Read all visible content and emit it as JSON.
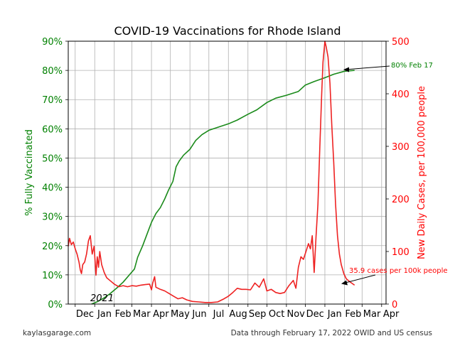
{
  "chart_data": {
    "type": "line",
    "title": "COVID-19 Vaccinations for Rhode Island",
    "x_axis": {
      "tick_labels": [
        "Dec",
        "Jan",
        "Feb",
        "Mar",
        "Apr",
        "May",
        "Jun",
        "Jul",
        "Aug",
        "Sep",
        "Oct",
        "Nov",
        "Dec",
        "Jan",
        "Feb",
        "Mar",
        "Apr"
      ],
      "tick_months": [
        "2020-12",
        "2021-01",
        "2021-02",
        "2021-03",
        "2021-04",
        "2021-05",
        "2021-06",
        "2021-07",
        "2021-08",
        "2021-09",
        "2021-10",
        "2021-11",
        "2021-12",
        "2022-01",
        "2022-02",
        "2022-03",
        "2022-04"
      ],
      "range": [
        "2020-11-20",
        "2022-04-08"
      ],
      "year_label": "2021"
    },
    "y_left": {
      "label": "% Fully Vaccinated",
      "range": [
        0,
        90
      ],
      "ticks": [
        "0%",
        "10%",
        "20%",
        "30%",
        "40%",
        "50%",
        "60%",
        "70%",
        "80%",
        "90%"
      ],
      "color": "#008000"
    },
    "y_right": {
      "label": "New Daily Cases, per 100,000 people",
      "range": [
        0,
        500
      ],
      "ticks": [
        "0",
        "100",
        "200",
        "300",
        "400",
        "500"
      ],
      "color": "#ff0000"
    },
    "grid": true,
    "series": [
      {
        "axis": "left",
        "color": "#1a8a1a",
        "points": [
          [
            "2020-12-27",
            0
          ],
          [
            "2021-01-05",
            0.8
          ],
          [
            "2021-01-15",
            2
          ],
          [
            "2021-01-25",
            3.5
          ],
          [
            "2021-02-05",
            5.5
          ],
          [
            "2021-02-15",
            7.5
          ],
          [
            "2021-02-25",
            10
          ],
          [
            "2021-03-05",
            12
          ],
          [
            "2021-03-10",
            16
          ],
          [
            "2021-03-18",
            20
          ],
          [
            "2021-03-25",
            24
          ],
          [
            "2021-04-01",
            28
          ],
          [
            "2021-04-08",
            31
          ],
          [
            "2021-04-15",
            33
          ],
          [
            "2021-04-22",
            36
          ],
          [
            "2021-04-28",
            39
          ],
          [
            "2021-05-05",
            42
          ],
          [
            "2021-05-10",
            47
          ],
          [
            "2021-05-15",
            49
          ],
          [
            "2021-05-22",
            51
          ],
          [
            "2021-06-01",
            53
          ],
          [
            "2021-06-10",
            56
          ],
          [
            "2021-06-20",
            58
          ],
          [
            "2021-07-01",
            59.5
          ],
          [
            "2021-07-15",
            60.5
          ],
          [
            "2021-08-01",
            61.7
          ],
          [
            "2021-08-15",
            63
          ],
          [
            "2021-09-01",
            65
          ],
          [
            "2021-09-15",
            66.5
          ],
          [
            "2021-10-01",
            69
          ],
          [
            "2021-10-15",
            70.5
          ],
          [
            "2021-11-01",
            71.5
          ],
          [
            "2021-11-20",
            72.8
          ],
          [
            "2021-12-01",
            75
          ],
          [
            "2021-12-15",
            76.2
          ],
          [
            "2022-01-01",
            77.5
          ],
          [
            "2022-01-15",
            78.7
          ],
          [
            "2022-02-01",
            79.7
          ],
          [
            "2022-02-17",
            80
          ]
        ]
      },
      {
        "axis": "right",
        "color": "#ee2222",
        "points": [
          [
            "2020-11-20",
            110
          ],
          [
            "2020-11-22",
            125
          ],
          [
            "2020-11-25",
            113
          ],
          [
            "2020-11-28",
            118
          ],
          [
            "2020-12-01",
            105
          ],
          [
            "2020-12-04",
            95
          ],
          [
            "2020-12-07",
            80
          ],
          [
            "2020-12-09",
            65
          ],
          [
            "2020-12-11",
            58
          ],
          [
            "2020-12-13",
            75
          ],
          [
            "2020-12-16",
            80
          ],
          [
            "2020-12-19",
            95
          ],
          [
            "2020-12-22",
            120
          ],
          [
            "2020-12-25",
            130
          ],
          [
            "2020-12-28",
            95
          ],
          [
            "2020-12-31",
            110
          ],
          [
            "2021-01-03",
            55
          ],
          [
            "2021-01-05",
            90
          ],
          [
            "2021-01-07",
            70
          ],
          [
            "2021-01-09",
            100
          ],
          [
            "2021-01-12",
            75
          ],
          [
            "2021-01-16",
            60
          ],
          [
            "2021-01-20",
            50
          ],
          [
            "2021-01-25",
            45
          ],
          [
            "2021-02-01",
            38
          ],
          [
            "2021-02-08",
            33
          ],
          [
            "2021-02-15",
            35
          ],
          [
            "2021-02-22",
            33
          ],
          [
            "2021-03-01",
            35
          ],
          [
            "2021-03-08",
            34
          ],
          [
            "2021-03-15",
            36
          ],
          [
            "2021-03-22",
            37
          ],
          [
            "2021-03-29",
            38
          ],
          [
            "2021-04-01",
            27
          ],
          [
            "2021-04-03",
            40
          ],
          [
            "2021-04-06",
            52
          ],
          [
            "2021-04-08",
            32
          ],
          [
            "2021-04-15",
            28
          ],
          [
            "2021-04-22",
            25
          ],
          [
            "2021-04-29",
            20
          ],
          [
            "2021-05-06",
            15
          ],
          [
            "2021-05-13",
            10
          ],
          [
            "2021-05-20",
            12
          ],
          [
            "2021-05-27",
            8
          ],
          [
            "2021-06-05",
            5
          ],
          [
            "2021-06-15",
            4
          ],
          [
            "2021-06-25",
            3
          ],
          [
            "2021-07-05",
            3
          ],
          [
            "2021-07-15",
            4
          ],
          [
            "2021-07-25",
            10
          ],
          [
            "2021-08-01",
            15
          ],
          [
            "2021-08-08",
            22
          ],
          [
            "2021-08-15",
            30
          ],
          [
            "2021-08-22",
            28
          ],
          [
            "2021-08-29",
            28
          ],
          [
            "2021-09-05",
            27
          ],
          [
            "2021-09-12",
            40
          ],
          [
            "2021-09-19",
            32
          ],
          [
            "2021-09-26",
            48
          ],
          [
            "2021-10-01",
            25
          ],
          [
            "2021-10-08",
            28
          ],
          [
            "2021-10-15",
            22
          ],
          [
            "2021-10-22",
            20
          ],
          [
            "2021-10-29",
            22
          ],
          [
            "2021-11-05",
            35
          ],
          [
            "2021-11-12",
            45
          ],
          [
            "2021-11-16",
            30
          ],
          [
            "2021-11-20",
            70
          ],
          [
            "2021-11-24",
            90
          ],
          [
            "2021-11-28",
            85
          ],
          [
            "2021-12-02",
            100
          ],
          [
            "2021-12-06",
            115
          ],
          [
            "2021-12-09",
            105
          ],
          [
            "2021-12-12",
            130
          ],
          [
            "2021-12-15",
            60
          ],
          [
            "2021-12-18",
            130
          ],
          [
            "2021-12-21",
            190
          ],
          [
            "2021-12-24",
            300
          ],
          [
            "2021-12-27",
            400
          ],
          [
            "2021-12-29",
            460
          ],
          [
            "2022-01-01",
            500
          ],
          [
            "2022-01-03",
            490
          ],
          [
            "2022-01-06",
            470
          ],
          [
            "2022-01-09",
            420
          ],
          [
            "2022-01-12",
            340
          ],
          [
            "2022-01-15",
            270
          ],
          [
            "2022-01-18",
            190
          ],
          [
            "2022-01-21",
            130
          ],
          [
            "2022-01-24",
            95
          ],
          [
            "2022-01-27",
            75
          ],
          [
            "2022-01-31",
            58
          ],
          [
            "2022-02-04",
            48
          ],
          [
            "2022-02-10",
            42
          ],
          [
            "2022-02-17",
            35.9
          ]
        ]
      }
    ],
    "annotations": [
      {
        "text": "80% Feb 17",
        "color": "#008000"
      },
      {
        "text": "35.9 cases per 100k people",
        "color": "#ff0000"
      }
    ],
    "footer_left": "kaylasgarage.com",
    "footer_right": "Data through February 17, 2022 OWID and US census"
  }
}
